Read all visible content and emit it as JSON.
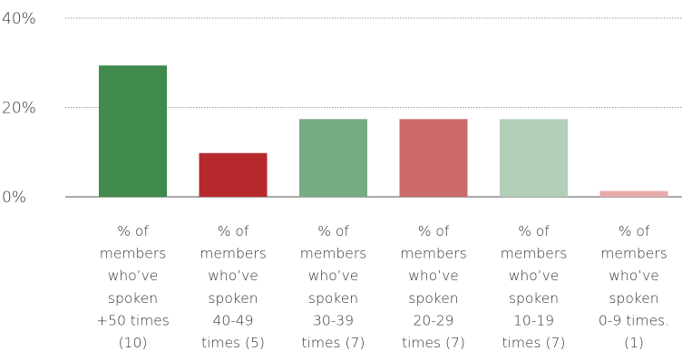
{
  "chart_data": {
    "type": "bar",
    "ylim": [
      0,
      40
    ],
    "yticks": [
      {
        "value": 0,
        "label": "0%"
      },
      {
        "value": 20,
        "label": "20%"
      },
      {
        "value": 40,
        "label": "40%"
      }
    ],
    "grid": true,
    "categories": [
      {
        "lines": [
          "% of",
          "members",
          "who’ve",
          "spoken",
          "+50 times",
          "(10)"
        ]
      },
      {
        "lines": [
          "% of",
          "members",
          "who’ve",
          "spoken",
          "40-49",
          "times (5)"
        ]
      },
      {
        "lines": [
          "% of",
          "members",
          "who’ve",
          "spoken",
          "30-39",
          "times (7)"
        ]
      },
      {
        "lines": [
          "% of",
          "members",
          "who’ve",
          "spoken",
          "20-29",
          "times (7)"
        ]
      },
      {
        "lines": [
          "% of",
          "members",
          "who’ve",
          "spoken",
          "10-19",
          "times (7)"
        ]
      },
      {
        "lines": [
          "% of",
          "members",
          "who’ve",
          "spoken",
          "0-9 times.",
          "(1)"
        ]
      }
    ],
    "values": [
      29.4,
      9.8,
      17.4,
      17.4,
      17.4,
      1.3
    ],
    "colors": [
      "#3f8a4c",
      "#b5292d",
      "#76ab84",
      "#cc6a6a",
      "#b2cfb7",
      "#e8a9a9"
    ]
  }
}
